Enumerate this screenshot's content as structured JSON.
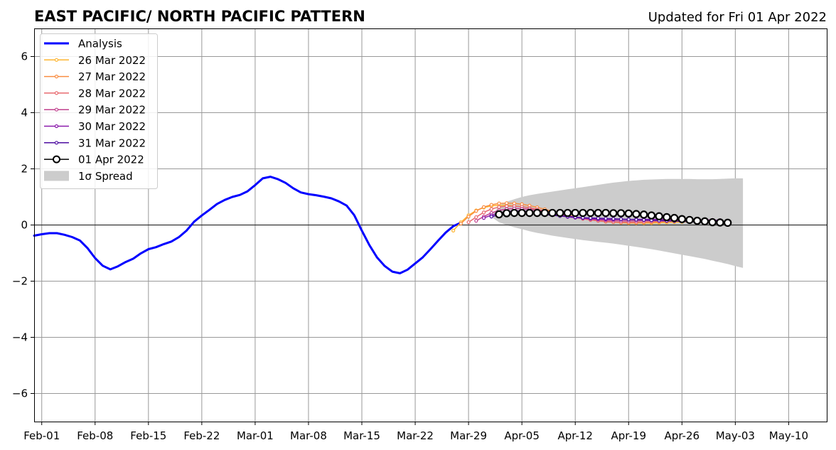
{
  "chart_data": {
    "type": "line",
    "title": "EAST PACIFIC/ NORTH PACIFIC PATTERN",
    "subtitle": "Updated for Fri 01 Apr 2022",
    "xlabel": "",
    "ylabel": "",
    "xlim": [
      "2022-01-31",
      "2022-05-15"
    ],
    "ylim": [
      -7,
      7
    ],
    "x_ticks": [
      "Feb-01",
      "Feb-08",
      "Feb-15",
      "Feb-22",
      "Mar-01",
      "Mar-08",
      "Mar-15",
      "Mar-22",
      "Mar-29",
      "Apr-05",
      "Apr-12",
      "Apr-19",
      "Apr-26",
      "May-03",
      "May-10"
    ],
    "x_tick_dates": [
      "2022-02-01",
      "2022-02-08",
      "2022-02-15",
      "2022-02-22",
      "2022-03-01",
      "2022-03-08",
      "2022-03-15",
      "2022-03-22",
      "2022-03-29",
      "2022-04-05",
      "2022-04-12",
      "2022-04-19",
      "2022-04-26",
      "2022-05-03",
      "2022-05-10"
    ],
    "y_ticks": [
      -6,
      -4,
      -2,
      0,
      2,
      4,
      6
    ],
    "y_tick_labels": [
      "−6",
      "−4",
      "−2",
      "0",
      "2",
      "4",
      "6"
    ],
    "grid": true,
    "legend_position": "top-left",
    "analysis": {
      "name": "Analysis",
      "color": "#0000ff",
      "start": "2022-01-31",
      "values": [
        -0.38,
        -0.33,
        -0.29,
        -0.29,
        -0.35,
        -0.43,
        -0.55,
        -0.82,
        -1.18,
        -1.45,
        -1.58,
        -1.47,
        -1.32,
        -1.2,
        -1.01,
        -0.86,
        -0.79,
        -0.68,
        -0.59,
        -0.43,
        -0.2,
        0.12,
        0.34,
        0.54,
        0.75,
        0.89,
        1.0,
        1.07,
        1.2,
        1.42,
        1.66,
        1.72,
        1.63,
        1.5,
        1.31,
        1.16,
        1.1,
        1.06,
        1.01,
        0.95,
        0.84,
        0.69,
        0.35,
        -0.2,
        -0.72,
        -1.16,
        -1.46,
        -1.66,
        -1.72,
        -1.59,
        -1.37,
        -1.15,
        -0.86,
        -0.56,
        -0.27,
        -0.04,
        0.08
      ]
    },
    "forecasts": [
      {
        "name": "26 Mar 2022",
        "color": "#fdb531",
        "start": "2022-03-27",
        "values": [
          -0.2,
          0.1,
          0.35,
          0.52,
          0.62,
          0.68,
          0.7,
          0.7,
          0.68,
          0.65,
          0.61,
          0.56,
          0.5,
          0.44,
          0.38,
          0.32,
          0.27,
          0.22,
          0.18,
          0.15,
          0.12,
          0.1,
          0.08,
          0.07,
          0.07,
          0.07,
          0.07,
          0.08,
          0.09,
          0.1,
          0.11,
          0.12
        ]
      },
      {
        "name": "27 Mar 2022",
        "color": "#f98e43",
        "start": "2022-03-28",
        "values": [
          0.05,
          0.3,
          0.5,
          0.64,
          0.72,
          0.77,
          0.78,
          0.77,
          0.74,
          0.69,
          0.63,
          0.56,
          0.49,
          0.42,
          0.35,
          0.29,
          0.24,
          0.19,
          0.15,
          0.12,
          0.1,
          0.09,
          0.08,
          0.08,
          0.09,
          0.1,
          0.11,
          0.12,
          0.13,
          0.14,
          0.14,
          0.14
        ]
      },
      {
        "name": "28 Mar 2022",
        "color": "#e76a6f",
        "start": "2022-03-29",
        "values": [
          0.1,
          0.28,
          0.45,
          0.57,
          0.64,
          0.67,
          0.67,
          0.65,
          0.61,
          0.56,
          0.5,
          0.44,
          0.38,
          0.32,
          0.27,
          0.22,
          0.18,
          0.15,
          0.13,
          0.11,
          0.1,
          0.1,
          0.1,
          0.11,
          0.12,
          0.13,
          0.14,
          0.15,
          0.16,
          0.16,
          0.16,
          0.16
        ]
      },
      {
        "name": "29 Mar 2022",
        "color": "#c1418e",
        "start": "2022-03-30",
        "values": [
          0.15,
          0.3,
          0.43,
          0.52,
          0.57,
          0.59,
          0.58,
          0.56,
          0.52,
          0.47,
          0.42,
          0.37,
          0.32,
          0.28,
          0.24,
          0.21,
          0.19,
          0.17,
          0.16,
          0.15,
          0.15,
          0.15,
          0.16,
          0.16,
          0.17,
          0.17,
          0.18,
          0.18,
          0.18,
          0.18,
          0.18,
          0.18
        ]
      },
      {
        "name": "30 Mar 2022",
        "color": "#8b1aab",
        "start": "2022-03-31",
        "values": [
          0.25,
          0.35,
          0.43,
          0.48,
          0.5,
          0.5,
          0.48,
          0.45,
          0.41,
          0.37,
          0.33,
          0.29,
          0.26,
          0.24,
          0.22,
          0.21,
          0.2,
          0.2,
          0.2,
          0.2,
          0.2,
          0.2,
          0.2,
          0.2,
          0.2,
          0.2,
          0.19,
          0.19,
          0.18,
          0.18,
          0.17,
          0.17
        ]
      },
      {
        "name": "31 Mar 2022",
        "color": "#4e0ea1",
        "start": "2022-04-01",
        "values": [
          0.3,
          0.36,
          0.4,
          0.42,
          0.42,
          0.41,
          0.39,
          0.37,
          0.35,
          0.32,
          0.3,
          0.28,
          0.26,
          0.25,
          0.24,
          0.23,
          0.22,
          0.21,
          0.2,
          0.19,
          0.18,
          0.17,
          0.16,
          0.15,
          0.14,
          0.13,
          0.12,
          0.11,
          0.1,
          0.09,
          0.08,
          0.08
        ]
      },
      {
        "name": "01 Apr 2022",
        "color": "#000000",
        "marker": "open-circle",
        "start": "2022-04-02",
        "values": [
          0.38,
          0.42,
          0.43,
          0.43,
          0.43,
          0.43,
          0.43,
          0.43,
          0.43,
          0.43,
          0.43,
          0.43,
          0.43,
          0.43,
          0.43,
          0.42,
          0.42,
          0.41,
          0.39,
          0.37,
          0.34,
          0.31,
          0.28,
          0.25,
          0.21,
          0.18,
          0.15,
          0.13,
          0.1,
          0.09,
          0.08
        ]
      }
    ],
    "spread": {
      "name": "1σ Spread",
      "color": "#cccccc",
      "start": "2022-04-01",
      "upper": [
        0.28,
        0.7,
        0.83,
        0.92,
        1.0,
        1.06,
        1.11,
        1.15,
        1.19,
        1.23,
        1.27,
        1.31,
        1.35,
        1.39,
        1.43,
        1.47,
        1.51,
        1.54,
        1.57,
        1.59,
        1.61,
        1.62,
        1.63,
        1.64,
        1.64,
        1.64,
        1.64,
        1.63,
        1.63,
        1.63,
        1.64,
        1.65,
        1.66,
        1.66
      ],
      "lower": [
        0.28,
        0.1,
        0.0,
        -0.08,
        -0.15,
        -0.22,
        -0.28,
        -0.33,
        -0.38,
        -0.42,
        -0.46,
        -0.5,
        -0.54,
        -0.57,
        -0.6,
        -0.63,
        -0.66,
        -0.7,
        -0.74,
        -0.78,
        -0.82,
        -0.86,
        -0.91,
        -0.96,
        -1.01,
        -1.06,
        -1.11,
        -1.16,
        -1.21,
        -1.27,
        -1.33,
        -1.39,
        -1.46,
        -1.53
      ]
    }
  }
}
